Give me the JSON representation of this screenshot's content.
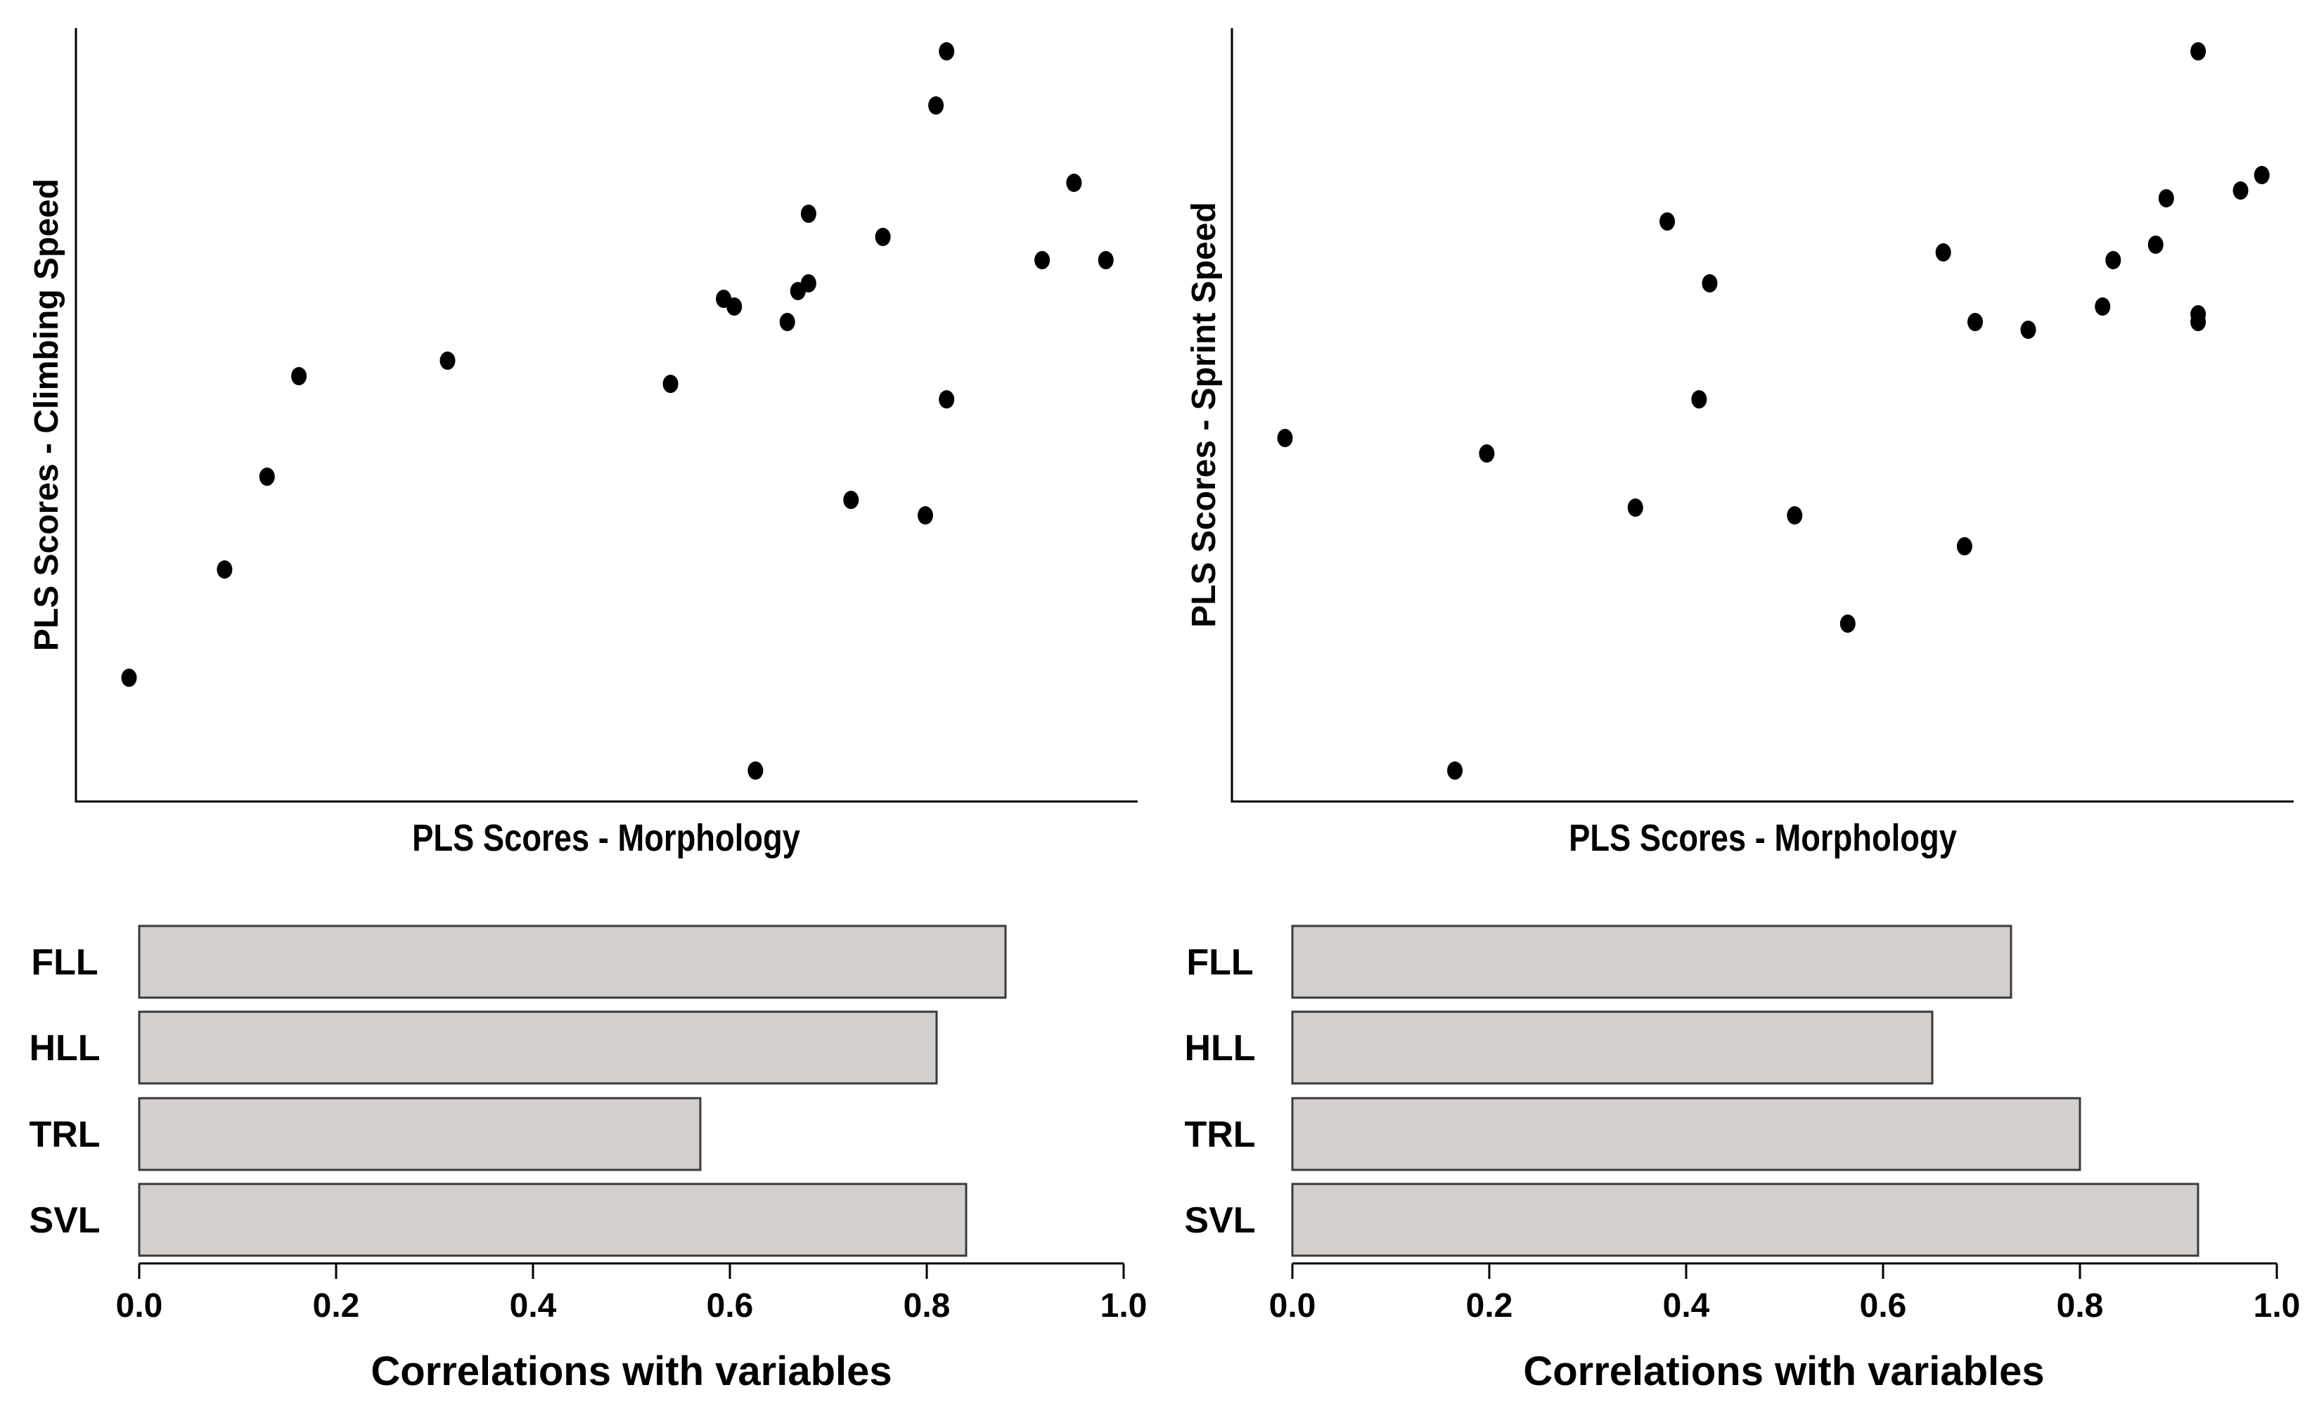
{
  "chart_data": [
    {
      "type": "scatter",
      "xlabel": "PLS Scores - Morphology",
      "ylabel": "PLS Scores - Climbing Speed",
      "xlim": [
        0,
        1
      ],
      "ylim": [
        0,
        1
      ],
      "points": [
        {
          "x": 0.05,
          "y": 0.16
        },
        {
          "x": 0.14,
          "y": 0.3
        },
        {
          "x": 0.18,
          "y": 0.42
        },
        {
          "x": 0.21,
          "y": 0.55
        },
        {
          "x": 0.35,
          "y": 0.57
        },
        {
          "x": 0.56,
          "y": 0.54
        },
        {
          "x": 0.61,
          "y": 0.65
        },
        {
          "x": 0.62,
          "y": 0.64
        },
        {
          "x": 0.67,
          "y": 0.62
        },
        {
          "x": 0.68,
          "y": 0.66
        },
        {
          "x": 0.69,
          "y": 0.76
        },
        {
          "x": 0.69,
          "y": 0.67
        },
        {
          "x": 0.76,
          "y": 0.73
        },
        {
          "x": 0.73,
          "y": 0.39
        },
        {
          "x": 0.8,
          "y": 0.37
        },
        {
          "x": 0.82,
          "y": 0.52
        },
        {
          "x": 0.81,
          "y": 0.9
        },
        {
          "x": 0.82,
          "y": 0.97
        },
        {
          "x": 0.91,
          "y": 0.7
        },
        {
          "x": 0.94,
          "y": 0.8
        },
        {
          "x": 0.97,
          "y": 0.7
        },
        {
          "x": 0.64,
          "y": 0.04
        }
      ]
    },
    {
      "type": "scatter",
      "xlabel": "PLS Scores - Morphology",
      "ylabel": "PLS Scores - Sprint Speed",
      "xlim": [
        0,
        1
      ],
      "ylim": [
        0,
        1
      ],
      "points": [
        {
          "x": 0.05,
          "y": 0.47
        },
        {
          "x": 0.21,
          "y": 0.04
        },
        {
          "x": 0.24,
          "y": 0.45
        },
        {
          "x": 0.38,
          "y": 0.38
        },
        {
          "x": 0.41,
          "y": 0.75
        },
        {
          "x": 0.44,
          "y": 0.52
        },
        {
          "x": 0.45,
          "y": 0.67
        },
        {
          "x": 0.53,
          "y": 0.37
        },
        {
          "x": 0.58,
          "y": 0.23
        },
        {
          "x": 0.67,
          "y": 0.71
        },
        {
          "x": 0.69,
          "y": 0.33
        },
        {
          "x": 0.7,
          "y": 0.62
        },
        {
          "x": 0.75,
          "y": 0.61
        },
        {
          "x": 0.82,
          "y": 0.64
        },
        {
          "x": 0.83,
          "y": 0.7
        },
        {
          "x": 0.87,
          "y": 0.72
        },
        {
          "x": 0.88,
          "y": 0.78
        },
        {
          "x": 0.91,
          "y": 0.62
        },
        {
          "x": 0.91,
          "y": 0.63
        },
        {
          "x": 0.91,
          "y": 0.97
        },
        {
          "x": 0.95,
          "y": 0.79
        },
        {
          "x": 0.97,
          "y": 0.81
        }
      ]
    },
    {
      "type": "bar",
      "orientation": "horizontal",
      "categories": [
        "FLL",
        "HLL",
        "TRL",
        "SVL"
      ],
      "values": [
        0.88,
        0.81,
        0.57,
        0.84
      ],
      "xlabel": "Correlations with variables",
      "xlim": [
        0,
        1
      ],
      "xticks": [
        "0.0",
        "0.2",
        "0.4",
        "0.6",
        "0.8",
        "1.0"
      ]
    },
    {
      "type": "bar",
      "orientation": "horizontal",
      "categories": [
        "FLL",
        "HLL",
        "TRL",
        "SVL"
      ],
      "values": [
        0.73,
        0.65,
        0.8,
        0.92
      ],
      "xlabel": "Correlations with variables",
      "xlim": [
        0,
        1
      ],
      "xticks": [
        "0.0",
        "0.2",
        "0.4",
        "0.6",
        "0.8",
        "1.0"
      ]
    }
  ],
  "colors": {
    "bar_fill": "#d3cfcc",
    "bar_stroke": "#3a3a3a",
    "point": "#000000",
    "axis": "#000000"
  }
}
